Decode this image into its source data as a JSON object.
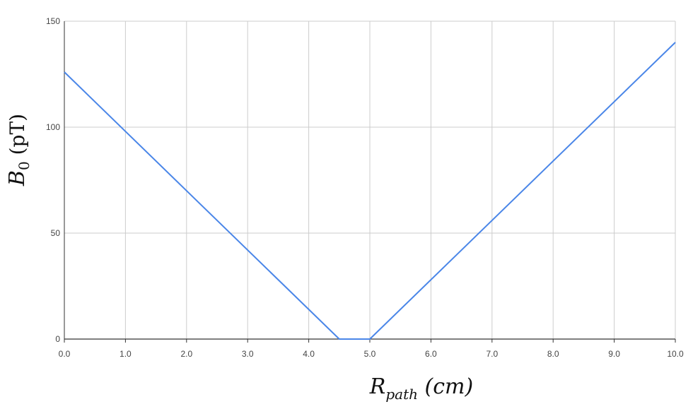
{
  "chart_data": {
    "type": "line",
    "x": [
      0.0,
      4.5,
      5.0,
      10.0
    ],
    "series": [
      {
        "values": [
          126,
          0,
          0,
          140
        ],
        "color": "#4a86e8"
      }
    ],
    "xlim": [
      0,
      10
    ],
    "ylim": [
      0,
      150
    ],
    "xticks": [
      "0.0",
      "1.0",
      "2.0",
      "3.0",
      "4.0",
      "5.0",
      "6.0",
      "7.0",
      "8.0",
      "9.0",
      "10.0"
    ],
    "yticks": [
      "0",
      "50",
      "100",
      "150"
    ],
    "xlabel": {
      "main": "R",
      "sub": "path",
      "unit": " (cm)"
    },
    "ylabel": {
      "main": "B",
      "sub": "0",
      "unit": " (pT)"
    },
    "grid": true,
    "colors": {
      "grid": "#cccccc",
      "axis": "#333333",
      "line": "#4a86e8"
    }
  }
}
